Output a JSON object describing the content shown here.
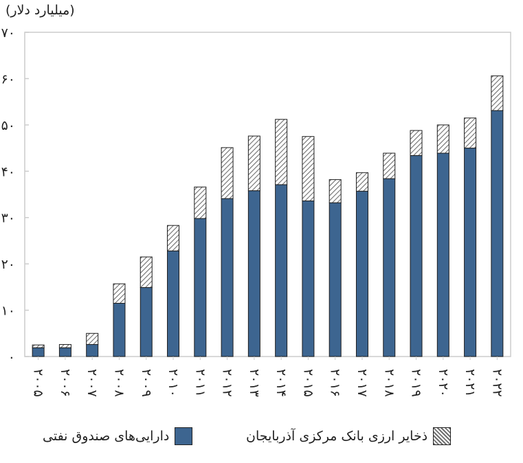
{
  "unit_label": "(میلیارد دلار)",
  "legend": {
    "oil_fund": "دارایی‌های صندوق نفتی",
    "central_bank": "ذخایر ارزی بانک مرکزی آذربایجان"
  },
  "colors": {
    "oil_fund": "#3d6590",
    "central_bank_hatch": "#8a8a8a",
    "axis": "#cccccc"
  },
  "chart_data": {
    "type": "bar",
    "stacked": true,
    "title": "",
    "xlabel": "",
    "ylabel": "(میلیارد دلار)",
    "ylim": [
      0,
      70
    ],
    "ytick_values": [
      0,
      10,
      20,
      30,
      40,
      50,
      60,
      70
    ],
    "ytick_labels": [
      "۰",
      "۱۰",
      "۲۰",
      "۳۰",
      "۴۰",
      "۵۰",
      "۶۰",
      "۷۰"
    ],
    "categories": [
      "۲۰۰۵",
      "۲۰۰۶",
      "۲۰۰۷",
      "۲۰۰۸",
      "۲۰۰۹",
      "۲۰۱۰",
      "۲۰۱۱",
      "۲۰۱۲",
      "۲۰۱۳",
      "۲۰۱۴",
      "۲۰۱۵",
      "۲۰۱۶",
      "۲۰۱۷",
      "۲۰۱۸",
      "۲۰۱۹",
      "۲۰۲۰",
      "۲۰۲۱",
      "۲۰۲۲"
    ],
    "series": [
      {
        "name": "دارایی‌های صندوق نفتی",
        "values": [
          1.9,
          1.9,
          2.6,
          11.5,
          14.9,
          22.8,
          29.8,
          34.1,
          35.8,
          37.1,
          33.6,
          33.2,
          35.7,
          38.4,
          43.4,
          43.9,
          45.0,
          53.1
        ]
      },
      {
        "name": "ذخایر ارزی بانک مرکزی آذربایجان",
        "values": [
          0.6,
          0.7,
          2.4,
          4.2,
          6.6,
          5.5,
          6.8,
          11.0,
          11.8,
          14.1,
          13.9,
          5.0,
          4.0,
          5.5,
          5.4,
          6.1,
          6.5,
          7.5
        ]
      }
    ],
    "grid": false,
    "legend_position": "bottom"
  }
}
